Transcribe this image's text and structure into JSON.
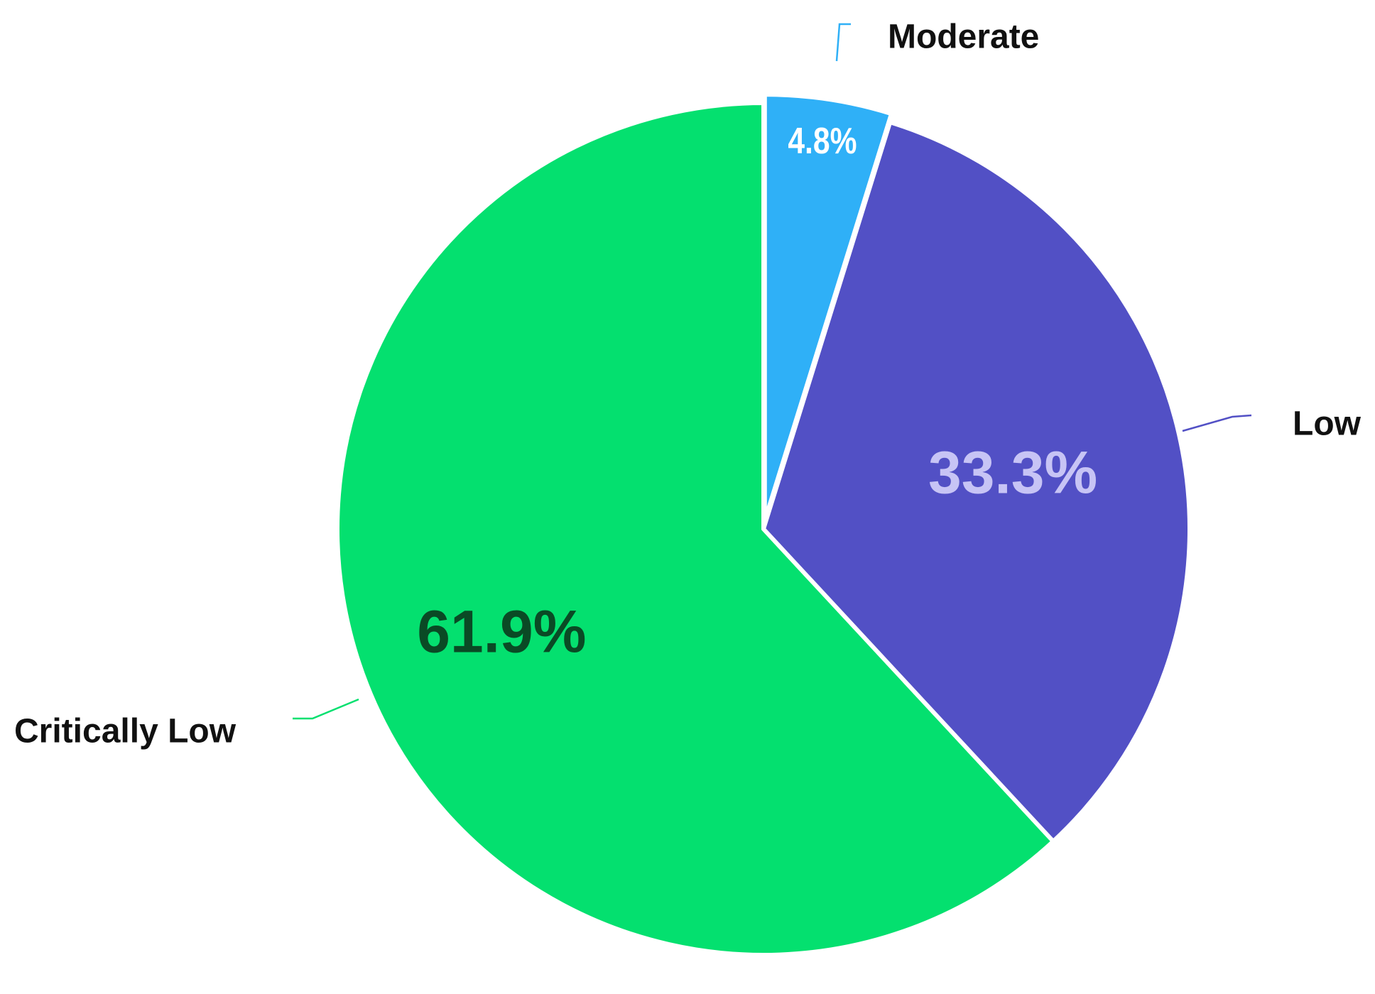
{
  "chart_data": {
    "type": "pie",
    "slices": [
      {
        "label": "Critically Low",
        "value": 61.9,
        "value_label": "61.9%",
        "color": "#04e06f",
        "value_label_color": "#0a4a25"
      },
      {
        "label": "Low",
        "value": 33.3,
        "value_label": "33.3%",
        "color": "#5250c5",
        "value_label_color": "#c7c4f5"
      },
      {
        "label": "Moderate",
        "value": 4.8,
        "value_label": "4.8%",
        "color": "#2fb0f7",
        "value_label_color": "#ffffff",
        "exploded": true
      }
    ],
    "start_angle": "12 o'clock",
    "direction": "counterclockwise",
    "title": "",
    "legend": "none",
    "label_placement": "outside with leader lines",
    "slice_border_color": "#ffffff"
  }
}
